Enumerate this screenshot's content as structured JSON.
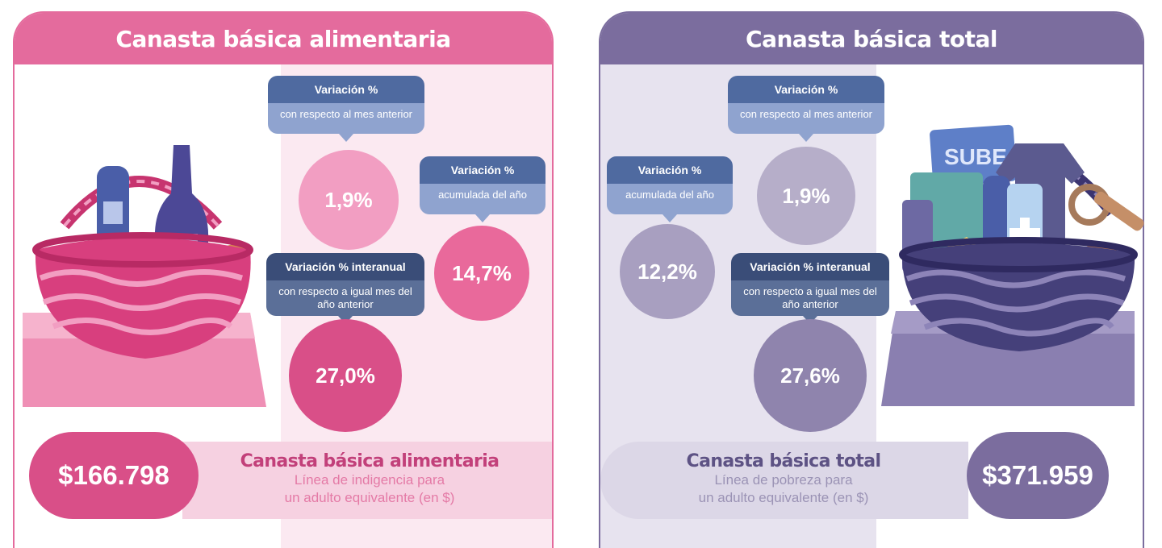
{
  "left": {
    "title": "Canasta básica alimentaria",
    "monthly": {
      "title": "Variación %",
      "body": "con respecto al mes anterior",
      "value": "1,9%"
    },
    "ytd": {
      "title": "Variación %",
      "body": "acumulada del año",
      "value": "14,7%"
    },
    "yoy": {
      "title": "Variación % interanual",
      "body": "con respecto a igual mes del año anterior",
      "value": "27,0%"
    },
    "footer": {
      "amount": "$166.798",
      "title": "Canasta básica alimentaria",
      "line1": "Línea de indigencia para",
      "line2": "un adulto equivalente (en $)"
    }
  },
  "right": {
    "title": "Canasta básica total",
    "monthly": {
      "title": "Variación %",
      "body": "con respecto al mes anterior",
      "value": "1,9%"
    },
    "ytd": {
      "title": "Variación %",
      "body": "acumulada del año",
      "value": "12,2%"
    },
    "yoy": {
      "title": "Variación % interanual",
      "body": "con respecto a igual mes del año anterior",
      "value": "27,6%"
    },
    "footer": {
      "amount": "$371.959",
      "title": "Canasta básica total",
      "line1": "Línea de pobreza para",
      "line2": "un adulto equivalente (en $)"
    },
    "card_label": "SUBE"
  },
  "colors": {
    "pink": "#e46b9d",
    "pink_dark": "#d94f88",
    "lavender": "#7b6d9e",
    "blue_callout": "#4f6aa0"
  },
  "icons": [
    "food-basket-illustration",
    "total-basket-illustration"
  ]
}
